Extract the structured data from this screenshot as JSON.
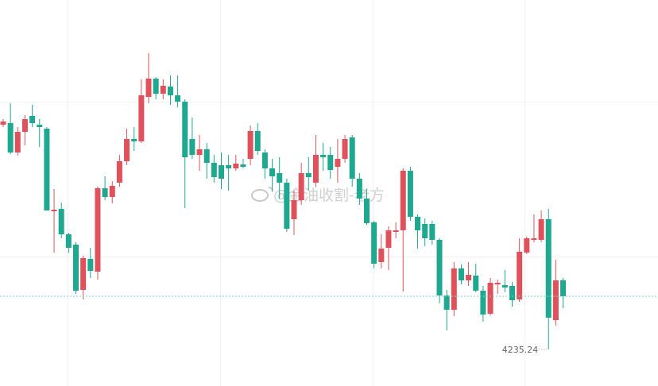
{
  "chart_data": {
    "type": "candlestick",
    "watermark": "@金油收割-老方",
    "up_color": "#e0525b",
    "down_color": "#1ea88f",
    "ylim": [
      4216.8,
      4411.2
    ],
    "open": [
      4348.4,
      4349.2,
      4334.4,
      4344.8,
      4352.8,
      4348.4,
      4346.4,
      4304.8,
      4306.0,
      4293.2,
      4288.0,
      4265.2,
      4280.8,
      4274.4,
      4316.4,
      4312.0,
      4319.2,
      4330.0,
      4341.2,
      4340.0,
      4362.4,
      4371.6,
      4364.0,
      4367.6,
      4363.2,
      4360.0,
      4341.2,
      4333.2,
      4336.0,
      4329.2,
      4328.0,
      4328.0,
      4326.4,
      4328.4,
      4331.2,
      4345.2,
      4334.4,
      4326.4,
      4324.0,
      4319.2,
      4300.8,
      4310.4,
      4324.0,
      4319.2,
      4333.2,
      4333.2,
      4327.2,
      4331.2,
      4342.0,
      4321.2,
      4311.2,
      4299.2,
      4279.2,
      4286.4,
      4294.4,
      4295.2,
      4325.2,
      4302.0,
      4298.4,
      4298.4,
      4290.4,
      4262.4,
      4255.2,
      4276.0,
      4270.0,
      4272.4,
      4264.8,
      4253.2,
      4268.0,
      4267.6,
      4267.2,
      4260.4,
      4284.0,
      4290.4,
      4290.4,
      4300.8,
      4250.0,
      4270.0
    ],
    "high": [
      4351.2,
      4359.2,
      4347.2,
      4353.2,
      4358.4,
      4351.2,
      4347.2,
      4316.0,
      4309.2,
      4294.0,
      4289.2,
      4282.4,
      4286.4,
      4317.2,
      4322.4,
      4320.0,
      4333.2,
      4346.4,
      4347.2,
      4371.2,
      4384.4,
      4372.4,
      4371.2,
      4373.2,
      4373.2,
      4361.2,
      4352.0,
      4343.2,
      4339.2,
      4333.2,
      4334.4,
      4333.2,
      4333.2,
      4331.2,
      4348.0,
      4349.2,
      4336.0,
      4331.2,
      4332.0,
      4321.2,
      4315.2,
      4329.2,
      4332.0,
      4343.2,
      4339.2,
      4337.2,
      4341.2,
      4343.2,
      4343.2,
      4324.0,
      4316.0,
      4300.0,
      4293.2,
      4297.2,
      4299.2,
      4326.4,
      4327.2,
      4303.2,
      4301.2,
      4300.0,
      4291.2,
      4265.2,
      4279.2,
      4278.0,
      4279.2,
      4278.4,
      4267.2,
      4271.2,
      4270.4,
      4275.2,
      4269.2,
      4291.2,
      4292.0,
      4303.2,
      4305.2,
      4306.0,
      4280.4,
      4271.2
    ],
    "low": [
      4347.2,
      4333.6,
      4332.8,
      4338.0,
      4347.2,
      4337.2,
      4305.2,
      4284.0,
      4291.2,
      4284.0,
      4263.2,
      4260.4,
      4271.2,
      4270.4,
      4310.4,
      4308.8,
      4317.2,
      4328.0,
      4335.2,
      4339.2,
      4359.2,
      4361.2,
      4361.2,
      4358.4,
      4357.2,
      4306.4,
      4331.2,
      4325.2,
      4321.2,
      4319.2,
      4316.0,
      4315.2,
      4325.2,
      4326.4,
      4328.0,
      4333.2,
      4321.2,
      4315.2,
      4311.2,
      4294.4,
      4292.8,
      4308.0,
      4315.2,
      4317.2,
      4325.2,
      4321.2,
      4319.2,
      4329.2,
      4317.2,
      4308.0,
      4298.0,
      4276.0,
      4276.0,
      4275.2,
      4291.2,
      4264.4,
      4300.0,
      4286.0,
      4287.2,
      4288.0,
      4258.4,
      4244.8,
      4252.0,
      4268.0,
      4267.2,
      4264.0,
      4249.2,
      4252.4,
      4263.2,
      4264.0,
      4256.8,
      4259.2,
      4283.2,
      4289.2,
      4289.2,
      4235.24,
      4247.2,
      4256.0
    ],
    "close": [
      4350.0,
      4334.4,
      4344.8,
      4351.2,
      4349.2,
      4347.2,
      4305.2,
      4305.6,
      4293.2,
      4286.4,
      4264.8,
      4281.2,
      4274.8,
      4316.4,
      4312.0,
      4317.6,
      4330.0,
      4341.2,
      4340.0,
      4363.2,
      4371.6,
      4364.0,
      4368.0,
      4363.2,
      4360.0,
      4332.0,
      4333.2,
      4336.0,
      4329.2,
      4322.0,
      4321.2,
      4326.4,
      4328.8,
      4327.2,
      4345.2,
      4335.2,
      4326.4,
      4322.4,
      4319.2,
      4296.0,
      4310.4,
      4324.0,
      4322.0,
      4333.2,
      4332.0,
      4325.6,
      4331.2,
      4341.2,
      4321.2,
      4311.2,
      4298.8,
      4278.4,
      4286.0,
      4295.2,
      4295.2,
      4325.2,
      4302.0,
      4295.2,
      4291.2,
      4290.4,
      4262.4,
      4255.2,
      4276.0,
      4270.0,
      4272.8,
      4264.8,
      4252.8,
      4268.8,
      4268.8,
      4266.4,
      4260.0,
      4284.4,
      4291.2,
      4291.2,
      4300.8,
      4251.2,
      4270.0,
      4262.0
    ]
  }
}
